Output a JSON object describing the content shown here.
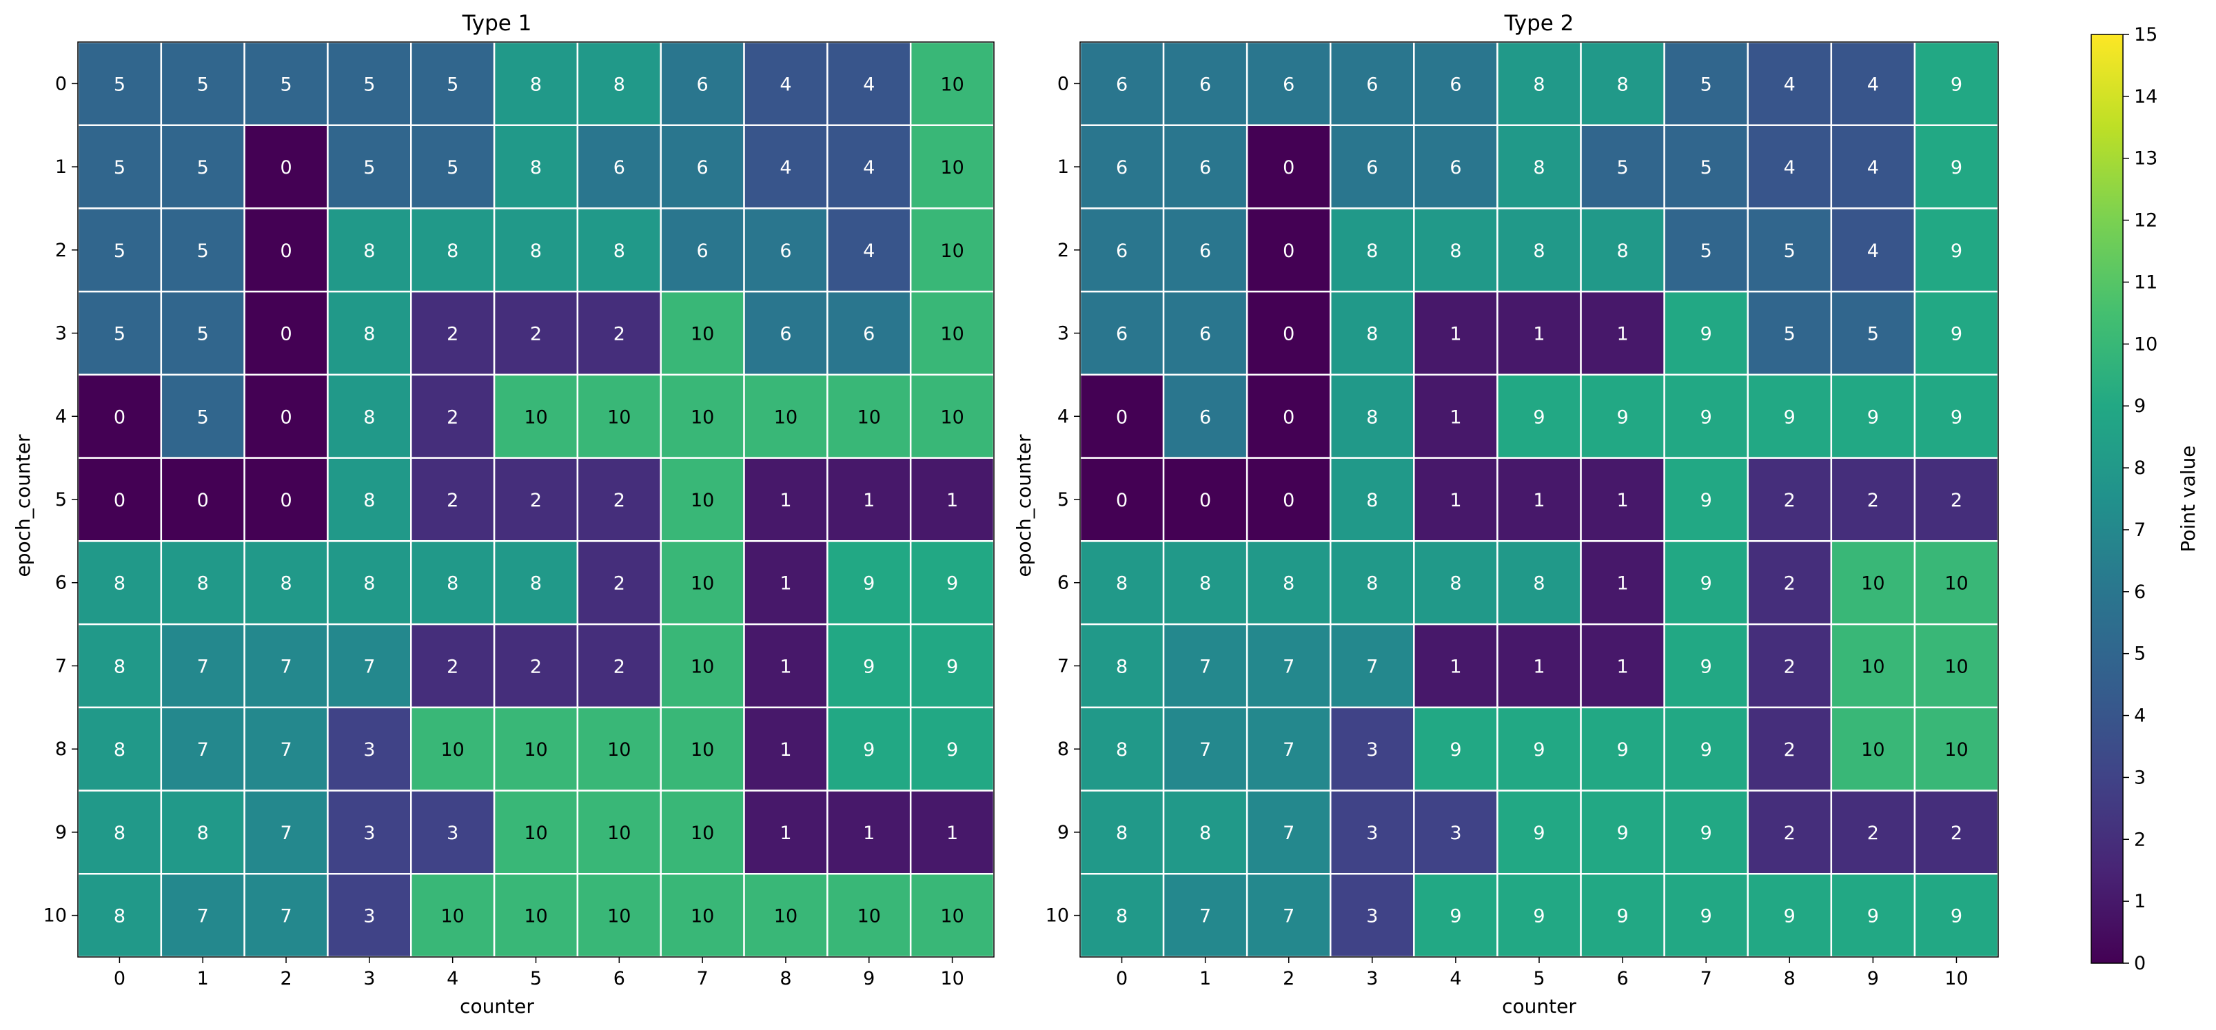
{
  "chart_data": [
    {
      "type": "heatmap",
      "title": "Type 1",
      "xlabel": "counter",
      "ylabel": "epoch_counter",
      "x": [
        "0",
        "1",
        "2",
        "3",
        "4",
        "5",
        "6",
        "7",
        "8",
        "9",
        "10"
      ],
      "y": [
        "0",
        "1",
        "2",
        "3",
        "4",
        "5",
        "6",
        "7",
        "8",
        "9",
        "10"
      ],
      "values": [
        [
          5,
          5,
          5,
          5,
          5,
          8,
          8,
          6,
          4,
          4,
          10
        ],
        [
          5,
          5,
          0,
          5,
          5,
          8,
          6,
          6,
          4,
          4,
          10
        ],
        [
          5,
          5,
          0,
          8,
          8,
          8,
          8,
          6,
          6,
          4,
          10
        ],
        [
          5,
          5,
          0,
          8,
          2,
          2,
          2,
          10,
          6,
          6,
          10
        ],
        [
          0,
          5,
          0,
          8,
          2,
          10,
          10,
          10,
          10,
          10,
          10
        ],
        [
          0,
          0,
          0,
          8,
          2,
          2,
          2,
          10,
          1,
          1,
          1
        ],
        [
          8,
          8,
          8,
          8,
          8,
          8,
          2,
          10,
          1,
          9,
          9
        ],
        [
          8,
          7,
          7,
          7,
          2,
          2,
          2,
          10,
          1,
          9,
          9
        ],
        [
          8,
          7,
          7,
          3,
          10,
          10,
          10,
          10,
          1,
          9,
          9
        ],
        [
          8,
          8,
          7,
          3,
          3,
          10,
          10,
          10,
          1,
          1,
          1
        ],
        [
          8,
          7,
          7,
          3,
          10,
          10,
          10,
          10,
          10,
          10,
          10
        ]
      ]
    },
    {
      "type": "heatmap",
      "title": "Type 2",
      "xlabel": "counter",
      "ylabel": "epoch_counter",
      "x": [
        "0",
        "1",
        "2",
        "3",
        "4",
        "5",
        "6",
        "7",
        "8",
        "9",
        "10"
      ],
      "y": [
        "0",
        "1",
        "2",
        "3",
        "4",
        "5",
        "6",
        "7",
        "8",
        "9",
        "10"
      ],
      "values": [
        [
          6,
          6,
          6,
          6,
          6,
          8,
          8,
          5,
          4,
          4,
          9
        ],
        [
          6,
          6,
          0,
          6,
          6,
          8,
          5,
          5,
          4,
          4,
          9
        ],
        [
          6,
          6,
          0,
          8,
          8,
          8,
          8,
          5,
          5,
          4,
          9
        ],
        [
          6,
          6,
          0,
          8,
          1,
          1,
          1,
          9,
          5,
          5,
          9
        ],
        [
          0,
          6,
          0,
          8,
          1,
          9,
          9,
          9,
          9,
          9,
          9
        ],
        [
          0,
          0,
          0,
          8,
          1,
          1,
          1,
          9,
          2,
          2,
          2
        ],
        [
          8,
          8,
          8,
          8,
          8,
          8,
          1,
          9,
          2,
          10,
          10
        ],
        [
          8,
          7,
          7,
          7,
          1,
          1,
          1,
          9,
          2,
          10,
          10
        ],
        [
          8,
          7,
          7,
          3,
          9,
          9,
          9,
          9,
          2,
          10,
          10
        ],
        [
          8,
          8,
          7,
          3,
          3,
          9,
          9,
          9,
          2,
          2,
          2
        ],
        [
          8,
          7,
          7,
          3,
          9,
          9,
          9,
          9,
          9,
          9,
          9
        ]
      ]
    }
  ],
  "colorbar": {
    "label": "Point value",
    "vmin": 0,
    "vmax": 15,
    "ticks": [
      "0",
      "1",
      "2",
      "3",
      "4",
      "5",
      "6",
      "7",
      "8",
      "9",
      "10",
      "11",
      "12",
      "13",
      "14",
      "15"
    ],
    "colormap": "viridis"
  }
}
